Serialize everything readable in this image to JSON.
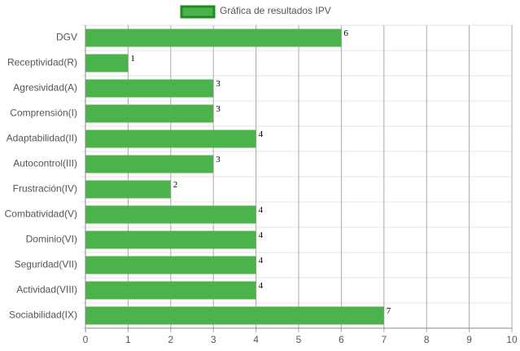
{
  "chart_data": {
    "type": "bar",
    "orientation": "horizontal",
    "legend_label": "Gráfica de resultados IPV",
    "legend_position": "top",
    "categories": [
      "DGV",
      "Receptividad(R)",
      "Agresividad(A)",
      "Comprensión(I)",
      "Adaptabilidad(II)",
      "Autocontrol(III)",
      "Frustración(IV)",
      "Combatividad(V)",
      "Dominio(VI)",
      "Seguridad(VII)",
      "Actividad(VIII)",
      "Sociabilidad(IX)"
    ],
    "values": [
      6,
      1,
      3,
      3,
      4,
      3,
      2,
      4,
      4,
      4,
      4,
      7
    ],
    "color": "#4cb34c",
    "border_color": "#1e8c1e",
    "xlim": [
      0,
      10
    ],
    "xticks": [
      0,
      1,
      2,
      3,
      4,
      5,
      6,
      7,
      8,
      9,
      10
    ],
    "grid": true
  }
}
